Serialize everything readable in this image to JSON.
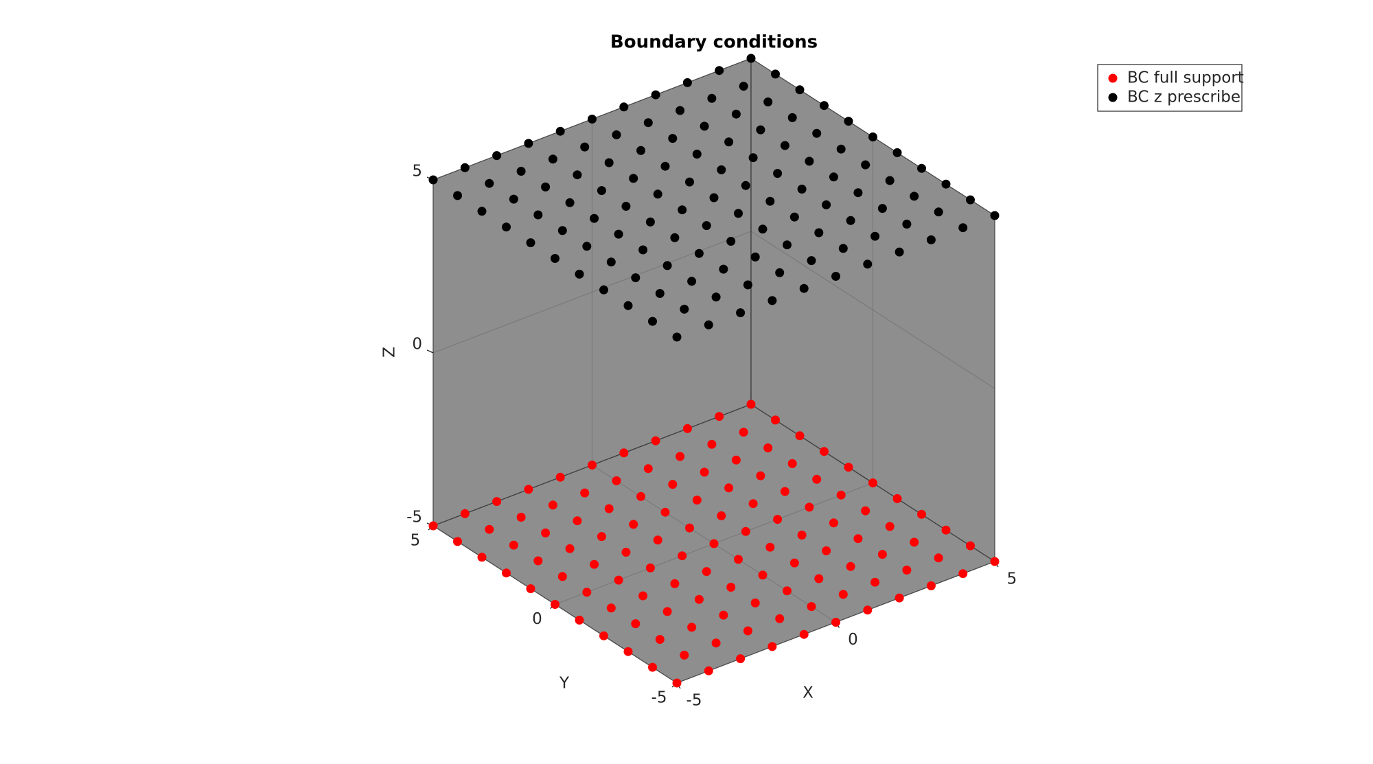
{
  "chart_data": {
    "type": "scatter3",
    "title": "Boundary conditions",
    "x_label": "X",
    "y_label": "Y",
    "z_label": "Z",
    "xlim": [
      -5,
      5
    ],
    "ylim": [
      -5,
      5
    ],
    "zlim": [
      -5,
      5
    ],
    "xticks": [
      -5,
      0,
      5
    ],
    "yticks": [
      -5,
      0,
      5
    ],
    "zticks": [
      -5,
      0,
      5
    ],
    "grid": true,
    "box_color": "#888888",
    "legend": "upper right",
    "series": [
      {
        "name": "BC full support",
        "color": "#ff0000",
        "x": [
          -5,
          -5,
          -5,
          -5,
          -5,
          -5,
          -5,
          -5,
          -5,
          -5,
          -5,
          -4,
          -4,
          -4,
          -4,
          -4,
          -4,
          -4,
          -4,
          -4,
          -4,
          -4,
          -3,
          -3,
          -3,
          -3,
          -3,
          -3,
          -3,
          -3,
          -3,
          -3,
          -3,
          -2,
          -2,
          -2,
          -2,
          -2,
          -2,
          -2,
          -2,
          -2,
          -2,
          -2,
          -1,
          -1,
          -1,
          -1,
          -1,
          -1,
          -1,
          -1,
          -1,
          -1,
          -1,
          0,
          0,
          0,
          0,
          0,
          0,
          0,
          0,
          0,
          0,
          0,
          1,
          1,
          1,
          1,
          1,
          1,
          1,
          1,
          1,
          1,
          1,
          2,
          2,
          2,
          2,
          2,
          2,
          2,
          2,
          2,
          2,
          2,
          3,
          3,
          3,
          3,
          3,
          3,
          3,
          3,
          3,
          3,
          3,
          4,
          4,
          4,
          4,
          4,
          4,
          4,
          4,
          4,
          4,
          4,
          5,
          5,
          5,
          5,
          5,
          5,
          5,
          5,
          5,
          5,
          5
        ],
        "y": [
          -5,
          -4,
          -3,
          -2,
          -1,
          0,
          1,
          2,
          3,
          4,
          5,
          -5,
          -4,
          -3,
          -2,
          -1,
          0,
          1,
          2,
          3,
          4,
          5,
          -5,
          -4,
          -3,
          -2,
          -1,
          0,
          1,
          2,
          3,
          4,
          5,
          -5,
          -4,
          -3,
          -2,
          -1,
          0,
          1,
          2,
          3,
          4,
          5,
          -5,
          -4,
          -3,
          -2,
          -1,
          0,
          1,
          2,
          3,
          4,
          5,
          -5,
          -4,
          -3,
          -2,
          -1,
          0,
          1,
          2,
          3,
          4,
          5,
          -5,
          -4,
          -3,
          -2,
          -1,
          0,
          1,
          2,
          3,
          4,
          5,
          -5,
          -4,
          -3,
          -2,
          -1,
          0,
          1,
          2,
          3,
          4,
          5,
          -5,
          -4,
          -3,
          -2,
          -1,
          0,
          1,
          2,
          3,
          4,
          5,
          -5,
          -4,
          -3,
          -2,
          -1,
          0,
          1,
          2,
          3,
          4,
          5,
          -5,
          -4,
          -3,
          -2,
          -1,
          0,
          1,
          2,
          3,
          4,
          5
        ],
        "z": [
          -5,
          -5,
          -5,
          -5,
          -5,
          -5,
          -5,
          -5,
          -5,
          -5,
          -5,
          -5,
          -5,
          -5,
          -5,
          -5,
          -5,
          -5,
          -5,
          -5,
          -5,
          -5,
          -5,
          -5,
          -5,
          -5,
          -5,
          -5,
          -5,
          -5,
          -5,
          -5,
          -5,
          -5,
          -5,
          -5,
          -5,
          -5,
          -5,
          -5,
          -5,
          -5,
          -5,
          -5,
          -5,
          -5,
          -5,
          -5,
          -5,
          -5,
          -5,
          -5,
          -5,
          -5,
          -5,
          -5,
          -5,
          -5,
          -5,
          -5,
          -5,
          -5,
          -5,
          -5,
          -5,
          -5,
          -5,
          -5,
          -5,
          -5,
          -5,
          -5,
          -5,
          -5,
          -5,
          -5,
          -5,
          -5,
          -5,
          -5,
          -5,
          -5,
          -5,
          -5,
          -5,
          -5,
          -5,
          -5,
          -5,
          -5,
          -5,
          -5,
          -5,
          -5,
          -5,
          -5,
          -5,
          -5,
          -5,
          -5,
          -5,
          -5,
          -5,
          -5,
          -5,
          -5,
          -5,
          -5,
          -5,
          -5,
          -5,
          -5,
          -5,
          -5,
          -5,
          -5,
          -5,
          -5,
          -5,
          -5,
          -5
        ]
      },
      {
        "name": "BC z prescribe",
        "color": "#000000",
        "x": [
          -5,
          -5,
          -5,
          -5,
          -5,
          -5,
          -5,
          -5,
          -5,
          -5,
          -5,
          -4,
          -4,
          -4,
          -4,
          -4,
          -4,
          -4,
          -4,
          -4,
          -4,
          -4,
          -3,
          -3,
          -3,
          -3,
          -3,
          -3,
          -3,
          -3,
          -3,
          -3,
          -3,
          -2,
          -2,
          -2,
          -2,
          -2,
          -2,
          -2,
          -2,
          -2,
          -2,
          -2,
          -1,
          -1,
          -1,
          -1,
          -1,
          -1,
          -1,
          -1,
          -1,
          -1,
          -1,
          0,
          0,
          0,
          0,
          0,
          0,
          0,
          0,
          0,
          0,
          0,
          1,
          1,
          1,
          1,
          1,
          1,
          1,
          1,
          1,
          1,
          1,
          2,
          2,
          2,
          2,
          2,
          2,
          2,
          2,
          2,
          2,
          2,
          3,
          3,
          3,
          3,
          3,
          3,
          3,
          3,
          3,
          3,
          3,
          4,
          4,
          4,
          4,
          4,
          4,
          4,
          4,
          4,
          4,
          4,
          5,
          5,
          5,
          5,
          5,
          5,
          5,
          5,
          5,
          5,
          5
        ],
        "y": [
          -5,
          -4,
          -3,
          -2,
          -1,
          0,
          1,
          2,
          3,
          4,
          5,
          -5,
          -4,
          -3,
          -2,
          -1,
          0,
          1,
          2,
          3,
          4,
          5,
          -5,
          -4,
          -3,
          -2,
          -1,
          0,
          1,
          2,
          3,
          4,
          5,
          -5,
          -4,
          -3,
          -2,
          -1,
          0,
          1,
          2,
          3,
          4,
          5,
          -5,
          -4,
          -3,
          -2,
          -1,
          0,
          1,
          2,
          3,
          4,
          5,
          -5,
          -4,
          -3,
          -2,
          -1,
          0,
          1,
          2,
          3,
          4,
          5,
          -5,
          -4,
          -3,
          -2,
          -1,
          0,
          1,
          2,
          3,
          4,
          5,
          -5,
          -4,
          -3,
          -2,
          -1,
          0,
          1,
          2,
          3,
          4,
          5,
          -5,
          -4,
          -3,
          -2,
          -1,
          0,
          1,
          2,
          3,
          4,
          5,
          -5,
          -4,
          -3,
          -2,
          -1,
          0,
          1,
          2,
          3,
          4,
          5,
          -5,
          -4,
          -3,
          -2,
          -1,
          0,
          1,
          2,
          3,
          4,
          5
        ],
        "z": [
          5,
          5,
          5,
          5,
          5,
          5,
          5,
          5,
          5,
          5,
          5,
          5,
          5,
          5,
          5,
          5,
          5,
          5,
          5,
          5,
          5,
          5,
          5,
          5,
          5,
          5,
          5,
          5,
          5,
          5,
          5,
          5,
          5,
          5,
          5,
          5,
          5,
          5,
          5,
          5,
          5,
          5,
          5,
          5,
          5,
          5,
          5,
          5,
          5,
          5,
          5,
          5,
          5,
          5,
          5,
          5,
          5,
          5,
          5,
          5,
          5,
          5,
          5,
          5,
          5,
          5,
          5,
          5,
          5,
          5,
          5,
          5,
          5,
          5,
          5,
          5,
          5,
          5,
          5,
          5,
          5,
          5,
          5,
          5,
          5,
          5,
          5,
          5,
          5,
          5,
          5,
          5,
          5,
          5,
          5,
          5,
          5,
          5,
          5,
          5,
          5,
          5,
          5,
          5,
          5,
          5,
          5,
          5,
          5,
          5,
          5,
          5,
          5,
          5,
          5,
          5,
          5,
          5,
          5,
          5,
          5
        ]
      }
    ]
  }
}
